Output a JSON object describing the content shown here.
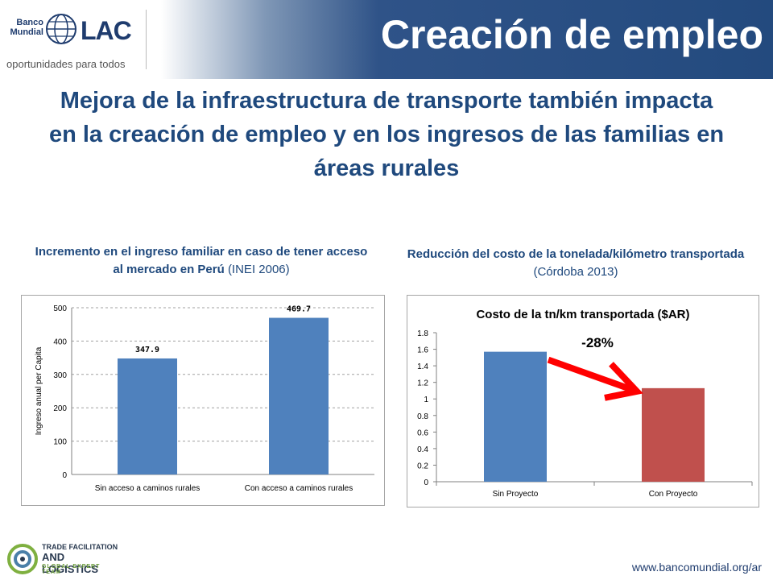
{
  "header": {
    "title": "Creación de empleo",
    "logo_bank": "Banco Mundial",
    "logo_lac": "LAC",
    "logo_tagline": "oportunidades para todos"
  },
  "subtitle": "Mejora de la infraestructura de transporte también impacta en la creación de empleo y en los ingresos de las familias en áreas rurales",
  "left_caption": {
    "bold": "Incremento en el ingreso familiar en caso de tener acceso al mercado en Perú",
    "source": "(INEI 2006)"
  },
  "right_caption": {
    "bold": "Reducción del costo de la tonelada/kilómetro transportada",
    "source": "(Córdoba 2013)"
  },
  "footer": {
    "url": "www.bancomundial.org/ar",
    "logo_line1": "TRADE FACILITATION",
    "logo_line2": "AND LOGISTICS",
    "logo_line3": "GLOBAL EXPERT TEAM"
  },
  "chart_data": [
    {
      "type": "bar",
      "title": "",
      "ylabel": "Ingreso anual per Capita",
      "xlabel": "",
      "categories": [
        "Sin acceso a caminos rurales",
        "Con acceso a caminos rurales"
      ],
      "values": [
        347.9,
        469.7
      ],
      "data_labels": [
        "347.9",
        "469.7"
      ],
      "ylim": [
        0,
        500
      ],
      "yticks": [
        "0",
        "100",
        "200",
        "300",
        "400",
        "500"
      ],
      "grid": true,
      "colors": [
        "#4f81bd",
        "#4f81bd"
      ]
    },
    {
      "type": "bar",
      "title": "Costo de la tn/km transportada ($AR)",
      "xlabel": "",
      "ylabel": "",
      "categories": [
        "Sin Proyecto",
        "Con Proyecto"
      ],
      "values": [
        1.57,
        1.13
      ],
      "ylim": [
        0,
        1.8
      ],
      "yticks": [
        "0",
        "0.2",
        "0.4",
        "0.6",
        "0.8",
        "1",
        "1.2",
        "1.4",
        "1.6",
        "1.8"
      ],
      "grid": false,
      "colors": [
        "#4f81bd",
        "#c0504d"
      ],
      "annotation": "-28%",
      "arrow_color": "#ff0000"
    }
  ]
}
